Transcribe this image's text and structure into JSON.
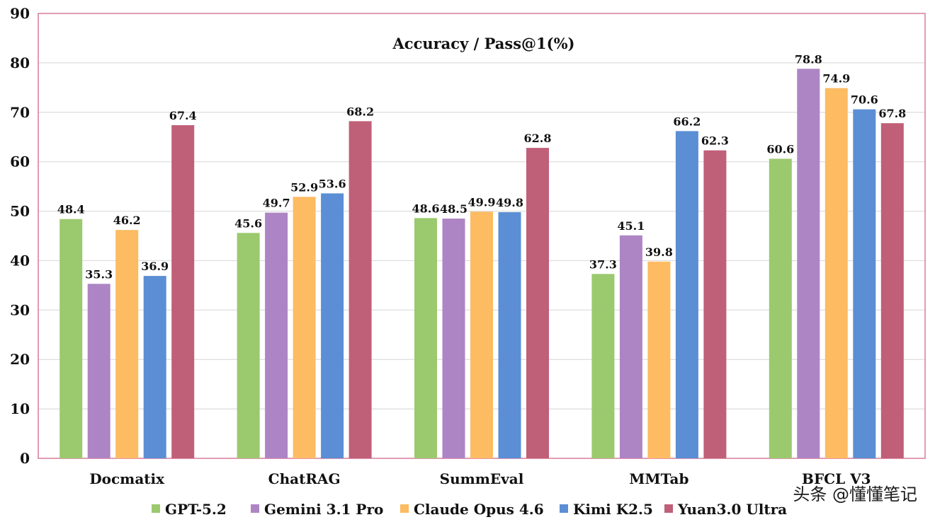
{
  "chart_data": {
    "type": "bar",
    "title": "Accuracy / Pass@1(%)",
    "xlabel": "",
    "ylabel": "",
    "ylim": [
      0,
      90
    ],
    "yticks": [
      0,
      10,
      20,
      30,
      40,
      50,
      60,
      70,
      80,
      90
    ],
    "grid": true,
    "legend_position": "bottom",
    "categories": [
      "Docmatix",
      "ChatRAG",
      "SummEval",
      "MMTab",
      "BFCL V3"
    ],
    "series": [
      {
        "name": "GPT-5.2",
        "color": "#9bc96e",
        "values": [
          48.4,
          45.6,
          48.6,
          37.3,
          60.6
        ]
      },
      {
        "name": "Gemini 3.1 Pro",
        "color": "#ad85c4",
        "values": [
          35.3,
          49.7,
          48.5,
          45.1,
          78.8
        ]
      },
      {
        "name": "Claude Opus 4.6",
        "color": "#fdbb62",
        "values": [
          46.2,
          52.9,
          49.9,
          39.8,
          74.9
        ]
      },
      {
        "name": "Kimi K2.5",
        "color": "#5b8ed4",
        "values": [
          36.9,
          53.6,
          49.8,
          66.2,
          70.6
        ]
      },
      {
        "name": "Yuan3.0 Ultra",
        "color": "#c05f78",
        "values": [
          67.4,
          68.2,
          62.8,
          62.3,
          67.8
        ]
      }
    ]
  },
  "watermark": "头条 @懂懂笔记"
}
